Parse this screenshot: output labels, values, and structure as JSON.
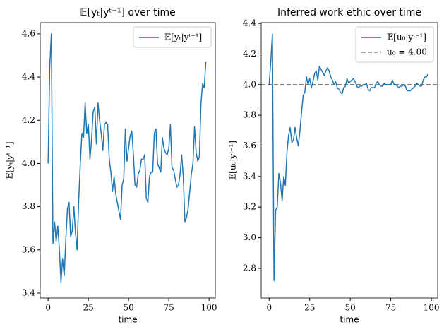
{
  "chart_data": [
    {
      "type": "line",
      "title": "𝔼[yₜ|yᵗ⁻¹] over time",
      "xlabel": "time",
      "ylabel": "𝔼[yₜ|yᵗ⁻¹]",
      "x": [
        0,
        1,
        2,
        3,
        4,
        5,
        6,
        7,
        8,
        9,
        10,
        11,
        12,
        13,
        14,
        15,
        16,
        17,
        18,
        19,
        20,
        21,
        22,
        23,
        24,
        25,
        26,
        27,
        28,
        29,
        30,
        31,
        32,
        33,
        34,
        35,
        36,
        37,
        38,
        39,
        40,
        41,
        42,
        43,
        44,
        45,
        46,
        47,
        48,
        49,
        50,
        51,
        52,
        53,
        54,
        55,
        56,
        57,
        58,
        59,
        60,
        61,
        62,
        63,
        64,
        65,
        66,
        67,
        68,
        69,
        70,
        71,
        72,
        73,
        74,
        75,
        76,
        77,
        78,
        79,
        80,
        81,
        82,
        83,
        84,
        85,
        86,
        87,
        88,
        89,
        90,
        91,
        92,
        93,
        94,
        95,
        96,
        97,
        98
      ],
      "series": [
        {
          "name": "𝔼[yₜ|yᵗ⁻¹]",
          "color": "#1f77b4",
          "values": [
            4.0,
            4.45,
            4.6,
            3.63,
            3.73,
            3.64,
            3.71,
            3.6,
            3.45,
            3.56,
            3.48,
            3.65,
            3.79,
            3.82,
            3.66,
            3.69,
            3.8,
            3.68,
            3.6,
            3.83,
            4.0,
            4.14,
            4.12,
            4.28,
            4.14,
            4.18,
            4.02,
            4.11,
            4.24,
            4.26,
            4.09,
            4.28,
            4.2,
            4.14,
            4.06,
            4.18,
            4.19,
            4.18,
            4.02,
            3.96,
            3.87,
            3.94,
            3.86,
            3.82,
            3.78,
            3.74,
            3.9,
            3.93,
            4.16,
            4.01,
            4.07,
            4.13,
            4.15,
            4.04,
            3.9,
            3.89,
            3.95,
            3.97,
            4.02,
            4.02,
            4.04,
            3.84,
            3.82,
            3.94,
            3.96,
            3.96,
            4.14,
            4.16,
            4.0,
            3.98,
            3.96,
            4.12,
            4.07,
            4.05,
            4.04,
            4.07,
            4.18,
            3.98,
            3.97,
            3.93,
            3.89,
            3.9,
            3.95,
            4.04,
            3.94,
            3.73,
            3.75,
            3.79,
            3.87,
            3.95,
            4.0,
            4.17,
            4.05,
            4.01,
            4.03,
            4.28,
            4.37,
            4.35,
            4.47
          ]
        }
      ],
      "xlim": [
        -4.9,
        103.9
      ],
      "xticks": [
        0,
        25,
        50,
        75,
        100
      ],
      "ylim": [
        3.377,
        4.652
      ],
      "yticks": [
        3.4,
        3.6,
        3.8,
        {
          "value": 4.0,
          "label": "4.0"
        },
        4.2,
        4.4,
        4.6
      ],
      "legend": "upper right"
    },
    {
      "type": "line",
      "title": "Inferred work ethic over time",
      "xlabel": "time",
      "ylabel": "𝔼[u₀|yᵗ⁻¹]",
      "x": [
        0,
        1,
        2,
        3,
        4,
        5,
        6,
        7,
        8,
        9,
        10,
        11,
        12,
        13,
        14,
        15,
        16,
        17,
        18,
        19,
        20,
        21,
        22,
        23,
        24,
        25,
        26,
        27,
        28,
        29,
        30,
        31,
        32,
        33,
        34,
        35,
        36,
        37,
        38,
        39,
        40,
        41,
        42,
        43,
        44,
        45,
        46,
        47,
        48,
        49,
        50,
        51,
        52,
        53,
        54,
        55,
        56,
        57,
        58,
        59,
        60,
        61,
        62,
        63,
        64,
        65,
        66,
        67,
        68,
        69,
        70,
        71,
        72,
        73,
        74,
        75,
        76,
        77,
        78,
        79,
        80,
        81,
        82,
        83,
        84,
        85,
        86,
        87,
        88,
        89,
        90,
        91,
        92,
        93,
        94,
        95,
        96,
        97,
        98
      ],
      "series": [
        {
          "name": "𝔼[u₀|yᵗ⁻¹]",
          "color": "#1f77b4",
          "values": [
            4.0,
            4.15,
            4.33,
            2.72,
            3.18,
            3.2,
            3.42,
            3.36,
            3.24,
            3.4,
            3.34,
            3.56,
            3.67,
            3.72,
            3.62,
            3.64,
            3.72,
            3.65,
            3.6,
            3.7,
            3.82,
            3.93,
            3.95,
            4.05,
            4.0,
            4.04,
            3.98,
            4.02,
            4.07,
            4.09,
            4.03,
            4.12,
            4.1,
            4.08,
            4.06,
            4.09,
            4.11,
            4.09,
            4.05,
            4.03,
            4.0,
            4.02,
            3.98,
            3.97,
            3.95,
            3.94,
            3.98,
            3.99,
            4.04,
            4.01,
            4.02,
            4.03,
            4.04,
            4.02,
            3.99,
            3.98,
            3.99,
            3.99,
            4.0,
            4.0,
            4.01,
            3.97,
            3.96,
            3.98,
            3.98,
            3.98,
            4.01,
            4.02,
            4.0,
            3.99,
            3.99,
            4.01,
            4.0,
            4.0,
            4.0,
            4.0,
            4.03,
            4.0,
            4.0,
            3.99,
            3.98,
            3.99,
            3.99,
            4.0,
            3.99,
            3.96,
            3.96,
            3.96,
            3.97,
            3.98,
            3.99,
            4.01,
            4.0,
            3.99,
            3.99,
            4.03,
            4.05,
            4.05,
            4.07
          ]
        }
      ],
      "reference_line": {
        "name": "u₀ = 4.00",
        "value": 4.0,
        "color": "#808080",
        "style": "dashed"
      },
      "xlim": [
        -4.9,
        103.9
      ],
      "xticks": [
        0,
        25,
        50,
        75,
        100
      ],
      "ylim": [
        2.606,
        4.405
      ],
      "yticks": [
        2.8,
        {
          "value": 3.0,
          "label": "3.0"
        },
        3.2,
        3.4,
        3.6,
        3.8,
        {
          "value": 4.0,
          "label": "4.0"
        },
        4.2,
        4.4
      ],
      "legend": "upper right"
    }
  ]
}
